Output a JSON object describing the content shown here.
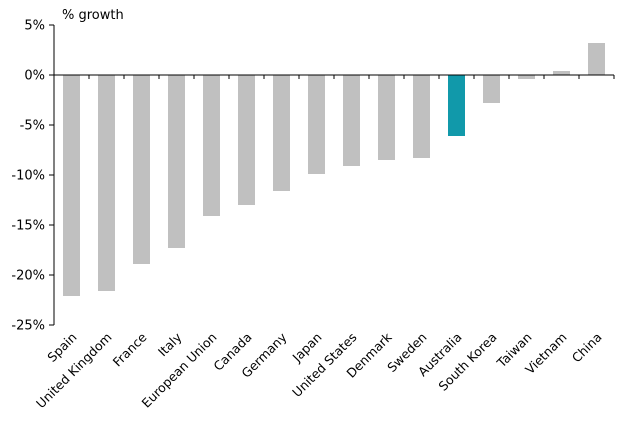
{
  "chart_data": {
    "type": "bar",
    "ylabel": "% growth",
    "ylim": [
      -25,
      5
    ],
    "yticks": [
      5,
      0,
      -5,
      -10,
      -15,
      -20,
      -25
    ],
    "ytick_labels": [
      "5%",
      "0%",
      "-5%",
      "-10%",
      "-15%",
      "-20%",
      "-25%"
    ],
    "grid": false,
    "categories": [
      "Spain",
      "United Kingdom",
      "France",
      "Italy",
      "European Union",
      "Canada",
      "Germany",
      "Japan",
      "United States",
      "Denmark",
      "Sweden",
      "Australia",
      "South Korea",
      "Taiwan",
      "Vietnam",
      "China"
    ],
    "values": [
      -22.1,
      -21.6,
      -18.9,
      -17.3,
      -14.1,
      -13.0,
      -11.6,
      -9.9,
      -9.1,
      -8.5,
      -8.3,
      -6.1,
      -2.8,
      -0.4,
      0.4,
      3.2
    ],
    "highlight": "Australia",
    "colors": {
      "default": "#c0c0c0",
      "highlight": "#1199aa",
      "axis": "#000000"
    }
  }
}
